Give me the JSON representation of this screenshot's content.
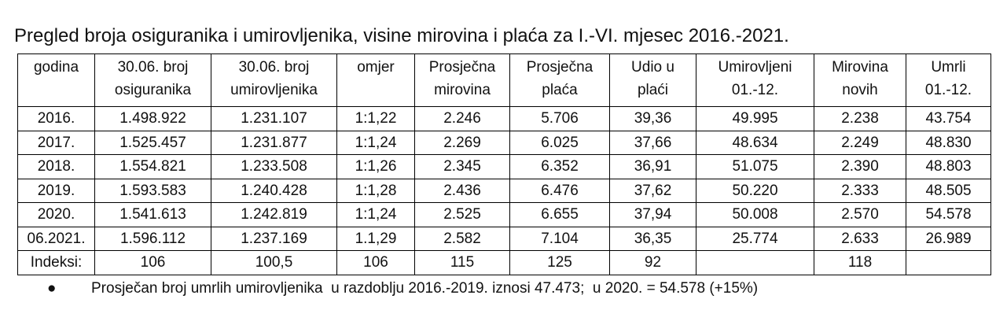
{
  "title": "Pregled broja osiguranika i umirovljenika, visine mirovina i plaća za I.-VI. mjesec 2016.-2021.",
  "table": {
    "headers": [
      [
        "godina"
      ],
      [
        "30.06. broj",
        "osiguranika"
      ],
      [
        "30.06. broj",
        "umirovljenika"
      ],
      [
        "omjer"
      ],
      [
        "Prosječna",
        "mirovina"
      ],
      [
        "Prosječna",
        "plaća"
      ],
      [
        "Udio u",
        "plaći"
      ],
      [
        "Umirovljeni",
        "01.-12."
      ],
      [
        "Mirovina",
        "novih"
      ],
      [
        "Umrli",
        "01.-12."
      ]
    ],
    "rows": [
      [
        "2016.",
        "1.498.922",
        "1.231.107",
        "1:1,22",
        "2.246",
        "5.706",
        "39,36",
        "49.995",
        "2.238",
        "43.754"
      ],
      [
        "2017.",
        "1.525.457",
        "1.231.877",
        "1:1,24",
        "2.269",
        "6.025",
        "37,66",
        "48.634",
        "2.249",
        "48.830"
      ],
      [
        "2018.",
        "1.554.821",
        "1.233.508",
        "1:1,26",
        "2.345",
        "6.352",
        "36,91",
        "51.075",
        "2.390",
        "48.803"
      ],
      [
        "2019.",
        "1.593.583",
        "1.240.428",
        "1:1,28",
        "2.436",
        "6.476",
        "37,62",
        "50.220",
        "2.333",
        "48.505"
      ],
      [
        "2020.",
        "1.541.613",
        "1.242.819",
        "1:1,24",
        "2.525",
        "6.655",
        "37,94",
        "50.008",
        "2.570",
        "54.578"
      ],
      [
        "06.2021.",
        "1.596.112",
        "1.237.169",
        "1.1,29",
        "2.582",
        "7.104",
        "36,35",
        "25.774",
        "2.633",
        "26.989"
      ],
      [
        "Indeksi:",
        "106",
        "100,5",
        "106",
        "115",
        "125",
        "92",
        null,
        "118",
        null
      ]
    ]
  },
  "note": "Prosječan broj umrlih umirovljenika  u razdoblju 2016.-2019. iznosi 47.473;  u 2020. = 54.578 (+15%)"
}
